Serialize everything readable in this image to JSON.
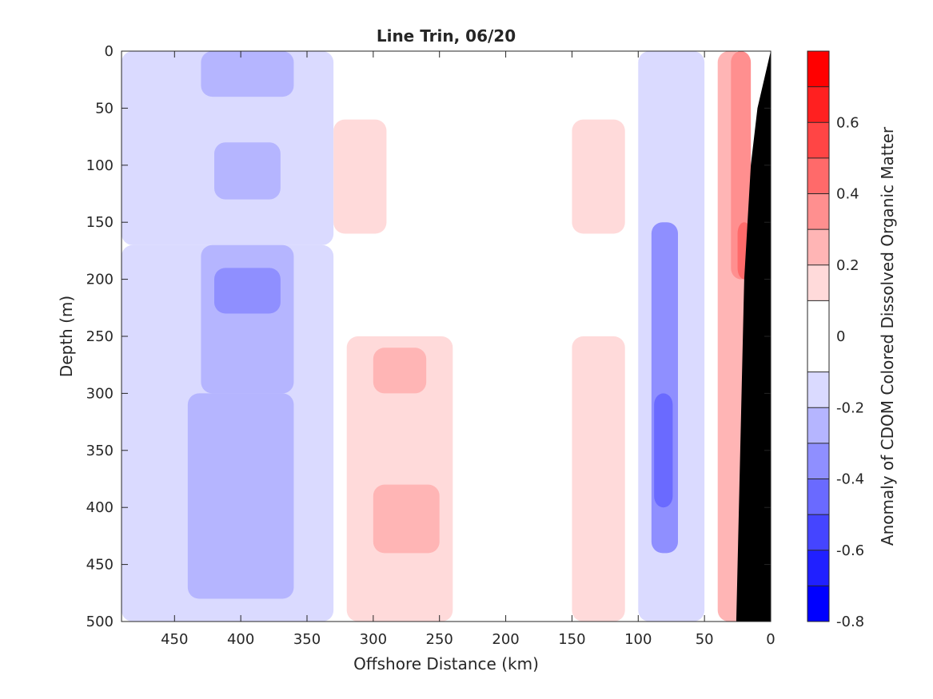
{
  "chart_data": {
    "type": "heatmap",
    "title": "Line Trin, 06/20",
    "xlabel": "Offshore Distance (km)",
    "ylabel": "Depth (m)",
    "xlim": [
      490,
      0
    ],
    "ylim": [
      0,
      500
    ],
    "x_reversed": true,
    "y_reversed": true,
    "x_ticks": [
      450,
      400,
      350,
      300,
      250,
      200,
      150,
      100,
      50,
      0
    ],
    "y_ticks": [
      0,
      50,
      100,
      150,
      200,
      250,
      300,
      350,
      400,
      450,
      500
    ],
    "colorbar": {
      "label": "Anomaly of CDOM Colored Dissolved Organic Matter",
      "range": [
        -0.8,
        0.8
      ],
      "ticks": [
        -0.8,
        -0.6,
        -0.4,
        -0.2,
        0,
        0.2,
        0.4,
        0.6
      ],
      "tick_labels": [
        "-0.8",
        "-0.6",
        "-0.4",
        "-0.2",
        "0",
        "0.2",
        "0.4",
        "0.6"
      ],
      "levels": [
        -0.8,
        -0.7,
        -0.6,
        -0.5,
        -0.4,
        -0.3,
        -0.2,
        -0.1,
        0.1,
        0.2,
        0.3,
        0.4,
        0.5,
        0.6,
        0.7,
        0.8
      ],
      "colors": [
        "#0000ff",
        "#2020ff",
        "#4545ff",
        "#6a6aff",
        "#8f8fff",
        "#b5b5ff",
        "#dadaff",
        "#ffffff",
        "#ffdada",
        "#ffb5b5",
        "#ff8f8f",
        "#ff6a6a",
        "#ff4545",
        "#ff2020",
        "#ff0000"
      ]
    },
    "bathymetry_color": "#000000",
    "bathymetry": [
      [
        0,
        0
      ],
      [
        10,
        50
      ],
      [
        15,
        100
      ],
      [
        20,
        200
      ],
      [
        22,
        300
      ],
      [
        24,
        400
      ],
      [
        26,
        500
      ]
    ],
    "regions": [
      {
        "x": [
          490,
          330
        ],
        "y": [
          0,
          170
        ],
        "value": -0.15
      },
      {
        "x": [
          430,
          360
        ],
        "y": [
          0,
          40
        ],
        "value": -0.25
      },
      {
        "x": [
          420,
          370
        ],
        "y": [
          80,
          130
        ],
        "value": -0.25
      },
      {
        "x": [
          490,
          330
        ],
        "y": [
          170,
          500
        ],
        "value": -0.2
      },
      {
        "x": [
          430,
          360
        ],
        "y": [
          170,
          300
        ],
        "value": -0.3
      },
      {
        "x": [
          420,
          370
        ],
        "y": [
          190,
          230
        ],
        "value": -0.4
      },
      {
        "x": [
          440,
          360
        ],
        "y": [
          300,
          480
        ],
        "value": -0.3
      },
      {
        "x": [
          330,
          290
        ],
        "y": [
          60,
          160
        ],
        "value": 0.1
      },
      {
        "x": [
          320,
          240
        ],
        "y": [
          250,
          500
        ],
        "value": 0.15
      },
      {
        "x": [
          300,
          260
        ],
        "y": [
          260,
          300
        ],
        "value": 0.2
      },
      {
        "x": [
          300,
          250
        ],
        "y": [
          380,
          440
        ],
        "value": 0.25
      },
      {
        "x": [
          150,
          110
        ],
        "y": [
          60,
          160
        ],
        "value": 0.1
      },
      {
        "x": [
          150,
          110
        ],
        "y": [
          250,
          500
        ],
        "value": 0.15
      },
      {
        "x": [
          100,
          50
        ],
        "y": [
          0,
          500
        ],
        "value": -0.2
      },
      {
        "x": [
          90,
          70
        ],
        "y": [
          150,
          440
        ],
        "value": -0.35
      },
      {
        "x": [
          88,
          74
        ],
        "y": [
          300,
          400
        ],
        "value": -0.45
      },
      {
        "x": [
          40,
          20
        ],
        "y": [
          0,
          500
        ],
        "value": 0.2
      },
      {
        "x": [
          30,
          15
        ],
        "y": [
          0,
          200
        ],
        "value": 0.35
      },
      {
        "x": [
          25,
          15
        ],
        "y": [
          150,
          200
        ],
        "value": 0.45
      }
    ]
  }
}
